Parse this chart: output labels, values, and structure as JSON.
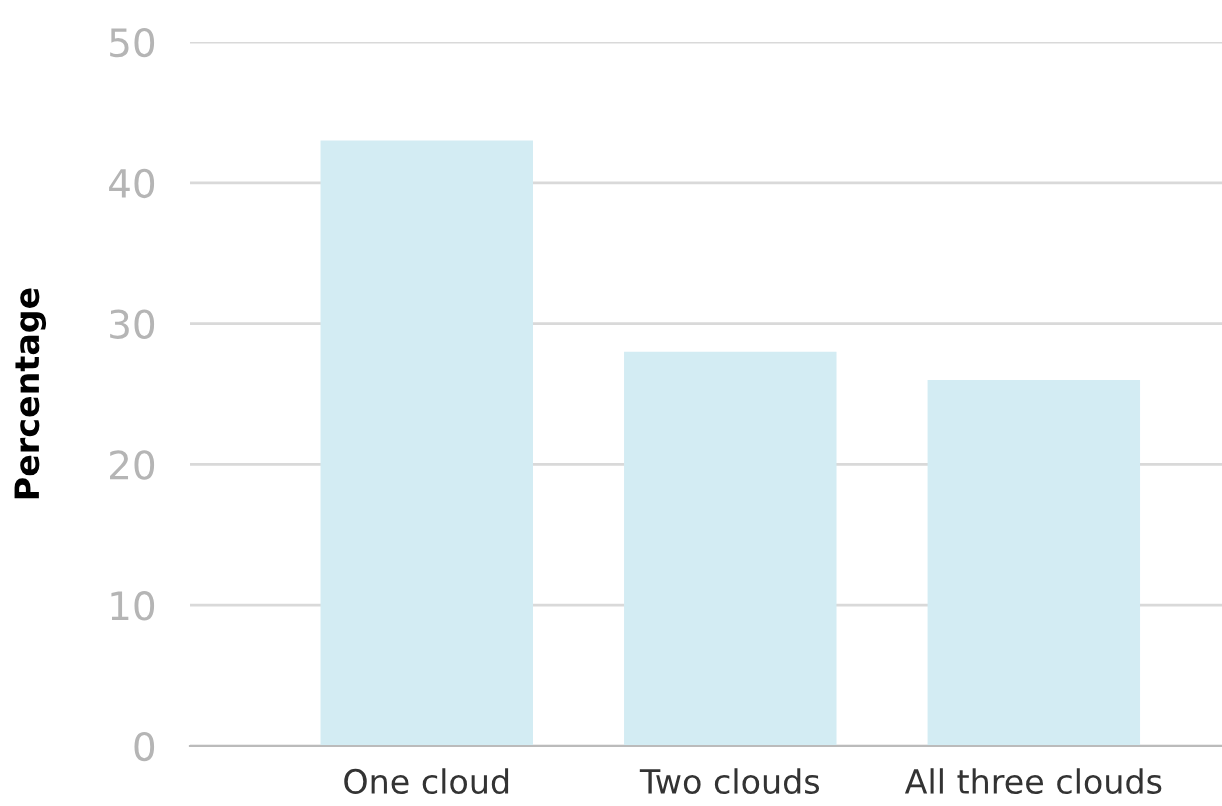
{
  "chart_data": {
    "type": "bar",
    "ylabel": "Percentage",
    "categories": [
      "One cloud",
      "Two clouds",
      "All three clouds"
    ],
    "values": [
      43,
      28,
      26
    ],
    "color": "#d3ecf3",
    "ylim": [
      0,
      50
    ],
    "yticks": [
      0,
      10,
      20,
      30,
      40,
      50
    ],
    "grid": "y",
    "legend": false
  }
}
